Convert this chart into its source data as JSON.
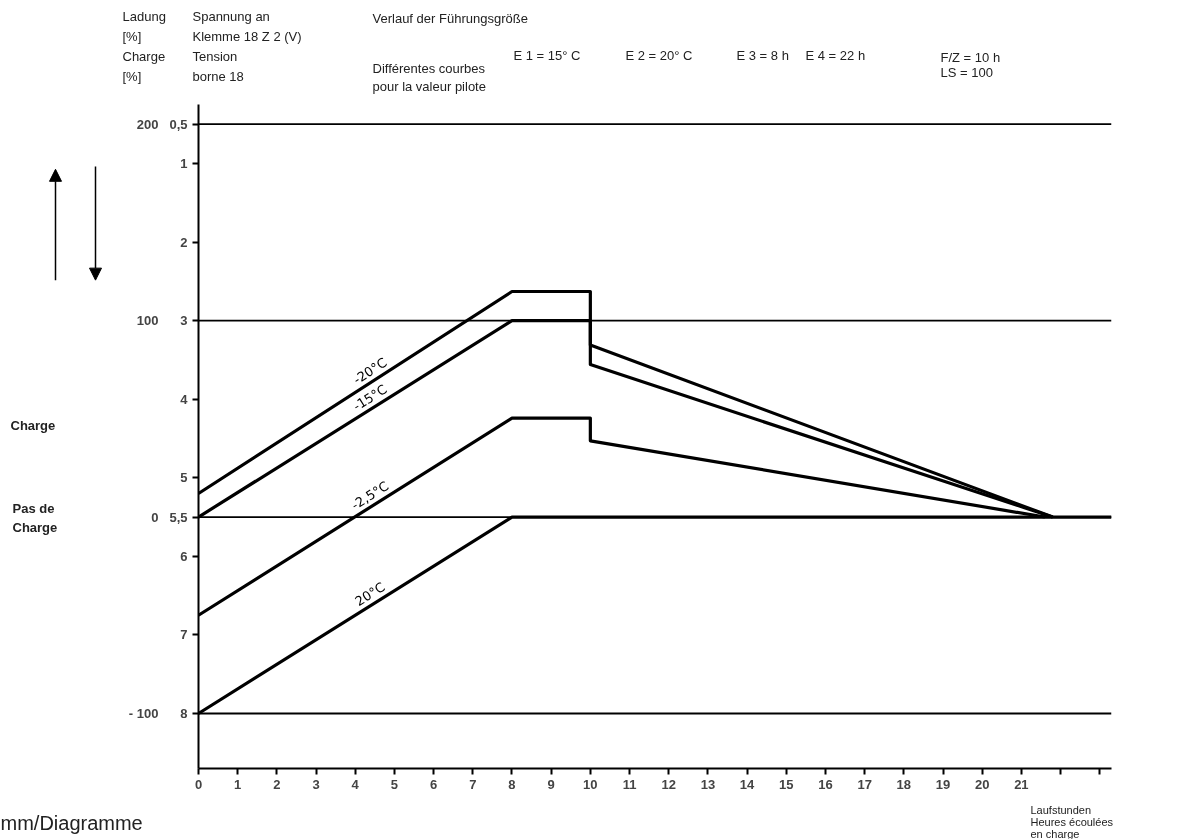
{
  "chart_data": {
    "type": "line",
    "title": "Verlauf der Führungsgröße",
    "subtitle": "Différentes courbes\npour la valeur pilote",
    "ylabel": "Spannung an\nKlemme 18 Z 2 (V)\nTension\nborne 18",
    "y2label": "Ladung\n[%]\nCharge\n[%]",
    "xlabel": "Laufstunden\nHeures écoulées\nen charge",
    "xlim": [
      0,
      23.3
    ],
    "ylim": [
      8.7,
      0.25
    ],
    "y2lim": [
      -128,
      210
    ],
    "xticks": [
      0,
      1,
      2,
      3,
      4,
      5,
      6,
      7,
      8,
      9,
      10,
      11,
      12,
      13,
      14,
      15,
      16,
      17,
      18,
      19,
      20,
      21,
      {
        "value": 22,
        "label": null
      },
      {
        "value": 23,
        "label": null
      }
    ],
    "yticks": [
      {
        "value": 0.5,
        "label": "0,5"
      },
      1,
      2,
      3,
      4,
      5,
      {
        "value": 5.5,
        "label": "5,5"
      },
      6,
      7,
      8
    ],
    "y2ticks": [
      200,
      100,
      0,
      {
        "value": -100,
        "label": "- 100"
      }
    ],
    "grid": false,
    "legend": false,
    "ref_lines": [
      {
        "axis": "y",
        "value": 0.5,
        "color": "#000000"
      },
      {
        "axis": "y",
        "value": 3,
        "color": "#000000"
      },
      {
        "axis": "y",
        "value": 5.5,
        "color": "#000000"
      },
      {
        "axis": "y",
        "value": 8,
        "color": "#000000"
      }
    ],
    "series": [
      {
        "name": "-20°C",
        "color": "#000000",
        "x": [
          0,
          8,
          10,
          10,
          21.8
        ],
        "values": [
          5.2,
          2.63,
          2.63,
          3.31,
          5.5
        ]
      },
      {
        "name": "-15°C",
        "color": "#000000",
        "x": [
          0,
          8,
          10,
          10,
          21.8
        ],
        "values": [
          5.5,
          3.0,
          3.0,
          3.56,
          5.5
        ]
      },
      {
        "name": "-2,5°C",
        "color": "#000000",
        "x": [
          0,
          8,
          10,
          10,
          21.6
        ],
        "values": [
          6.75,
          4.24,
          4.24,
          4.53,
          5.5
        ]
      },
      {
        "name": "20°C",
        "color": "#000000",
        "x": [
          0,
          8,
          23.3
        ],
        "values": [
          8,
          5.5,
          5.5
        ]
      }
    ],
    "annotations": [
      "E 1 = 15° C",
      "E 2 = 20° C",
      "E 3 = 8 h",
      "E 4 = 22 h",
      "F/Z = 10 h",
      "LS = 100",
      "Charge",
      "Pas de\nCharge",
      "mm/Diagramme"
    ]
  }
}
